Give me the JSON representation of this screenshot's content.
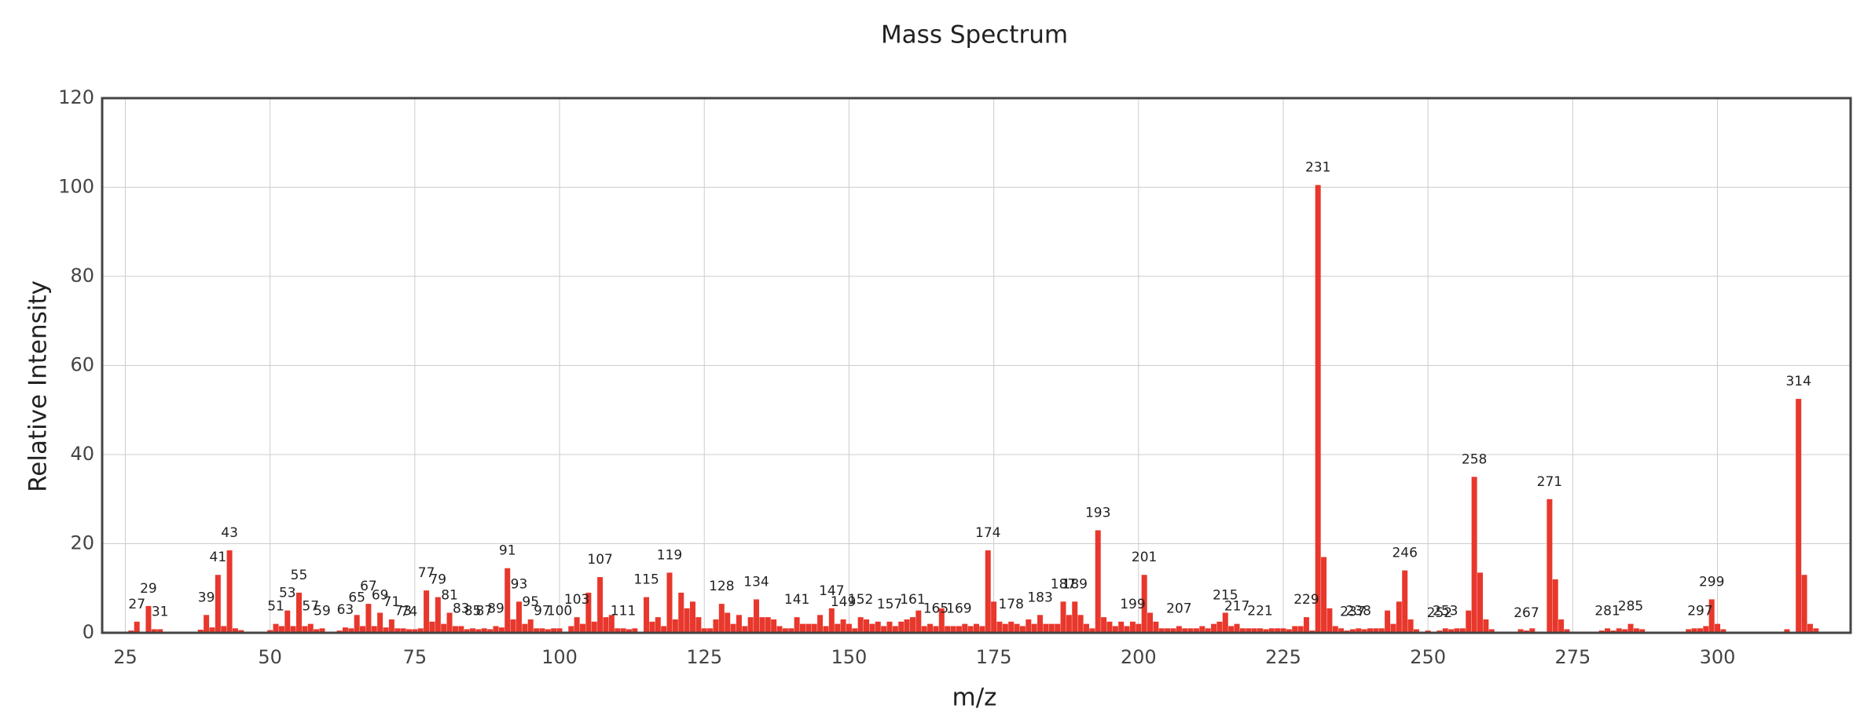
{
  "chart_data": {
    "type": "bar",
    "title": "Mass Spectrum",
    "x_label": "m/z",
    "y_label": "Relative Intensity",
    "color": "#e8372c",
    "grid": true,
    "xlim": [
      21,
      323
    ],
    "ylim": [
      0,
      120
    ],
    "xticks": [
      25,
      50,
      75,
      100,
      125,
      150,
      175,
      200,
      225,
      250,
      275,
      300
    ],
    "yticks": [
      0,
      20,
      40,
      60,
      80,
      100,
      120
    ],
    "x": [
      26,
      27,
      29,
      30,
      31,
      38,
      39,
      40,
      41,
      42,
      43,
      44,
      45,
      50,
      51,
      52,
      53,
      54,
      55,
      56,
      57,
      58,
      59,
      62,
      63,
      64,
      65,
      66,
      67,
      68,
      69,
      70,
      71,
      72,
      73,
      74,
      75,
      76,
      77,
      78,
      79,
      80,
      81,
      82,
      83,
      84,
      85,
      86,
      87,
      88,
      89,
      90,
      91,
      92,
      93,
      94,
      95,
      96,
      97,
      98,
      99,
      100,
      102,
      103,
      104,
      105,
      106,
      107,
      108,
      109,
      110,
      111,
      112,
      113,
      115,
      116,
      117,
      118,
      119,
      120,
      121,
      122,
      123,
      124,
      125,
      126,
      127,
      128,
      129,
      130,
      131,
      132,
      133,
      134,
      135,
      136,
      137,
      138,
      139,
      140,
      141,
      142,
      143,
      144,
      145,
      146,
      147,
      148,
      149,
      150,
      151,
      152,
      153,
      154,
      155,
      156,
      157,
      158,
      159,
      160,
      161,
      162,
      163,
      164,
      165,
      166,
      167,
      168,
      169,
      170,
      171,
      172,
      173,
      174,
      175,
      176,
      177,
      178,
      179,
      180,
      181,
      182,
      183,
      184,
      185,
      186,
      187,
      188,
      189,
      190,
      191,
      192,
      193,
      194,
      195,
      196,
      197,
      198,
      199,
      200,
      201,
      202,
      203,
      204,
      205,
      206,
      207,
      208,
      209,
      210,
      211,
      212,
      213,
      214,
      215,
      216,
      217,
      218,
      219,
      220,
      221,
      222,
      223,
      224,
      225,
      226,
      227,
      228,
      229,
      230,
      231,
      232,
      233,
      234,
      235,
      236,
      237,
      238,
      239,
      240,
      241,
      242,
      243,
      244,
      245,
      246,
      247,
      248,
      250,
      252,
      253,
      254,
      255,
      256,
      257,
      258,
      259,
      260,
      261,
      266,
      267,
      268,
      271,
      272,
      273,
      274,
      280,
      281,
      282,
      283,
      284,
      285,
      286,
      287,
      295,
      296,
      297,
      298,
      299,
      300,
      301,
      312,
      314,
      315,
      316,
      317
    ],
    "values": [
      0.5,
      2.5,
      6,
      0.8,
      0.8,
      0.7,
      4,
      1.2,
      13,
      1.5,
      18.5,
      1,
      0.6,
      0.6,
      2,
      1.5,
      5,
      1.5,
      9,
      1.5,
      2,
      0.8,
      1,
      0.5,
      1.2,
      1,
      4,
      1.5,
      6.5,
      1.5,
      4.5,
      1.2,
      3,
      1,
      1,
      0.8,
      0.8,
      1,
      9.5,
      2.5,
      8,
      2,
      4.5,
      1.5,
      1.5,
      0.8,
      1,
      0.8,
      1,
      0.8,
      1.5,
      1.2,
      14.5,
      3,
      7,
      2,
      3,
      1,
      1,
      0.8,
      1,
      1,
      1.5,
      3.5,
      2,
      9,
      2.5,
      12.5,
      3.5,
      4,
      1,
      1,
      0.8,
      1,
      8,
      2.5,
      3.5,
      1.5,
      13.5,
      3,
      9,
      5.5,
      7,
      3.5,
      1,
      1,
      3,
      6.5,
      4.5,
      2,
      4,
      1.5,
      3.5,
      7.5,
      3.5,
      3.5,
      3,
      1.5,
      1,
      1,
      3.5,
      2,
      2,
      2,
      4,
      1.5,
      5.5,
      2,
      3,
      2,
      1,
      3.5,
      3,
      2,
      2.5,
      1.5,
      2.5,
      1.5,
      2.5,
      3,
      3.5,
      5,
      1.5,
      2,
      1.5,
      5.5,
      1.5,
      1.5,
      1.5,
      2,
      1.5,
      2,
      1.5,
      18.5,
      7,
      2.5,
      2,
      2.5,
      2,
      1.5,
      3,
      2,
      4,
      2,
      2,
      2,
      7,
      4,
      7,
      4,
      2,
      1,
      23,
      3.5,
      2.5,
      1.5,
      2.5,
      1.5,
      2.5,
      2,
      13,
      4.5,
      2.5,
      1,
      1,
      1,
      1.5,
      1,
      1,
      1,
      1.5,
      1,
      2,
      2.5,
      4.5,
      1.5,
      2,
      1,
      1,
      1,
      1,
      0.8,
      1,
      1,
      1,
      0.8,
      1.5,
      1.5,
      3.5,
      0.5,
      100.5,
      17,
      5.5,
      1.5,
      1,
      0.5,
      0.8,
      1,
      0.8,
      1,
      1,
      1,
      5,
      2,
      7,
      14,
      3,
      0.8,
      0.5,
      0.5,
      1,
      0.8,
      1,
      1,
      5,
      35,
      13.5,
      3,
      0.8,
      0.8,
      0.5,
      1,
      30,
      12,
      3,
      0.8,
      0.5,
      1,
      0.5,
      1,
      0.8,
      2,
      1,
      0.8,
      0.8,
      1,
      1,
      1.5,
      7.5,
      2,
      0.8,
      0.8,
      52.5,
      13,
      2,
      1
    ],
    "annotations": [
      27,
      29,
      31,
      39,
      41,
      43,
      51,
      53,
      55,
      57,
      59,
      63,
      65,
      67,
      69,
      71,
      73,
      74,
      77,
      79,
      81,
      83,
      85,
      87,
      89,
      91,
      93,
      95,
      97,
      100,
      103,
      107,
      111,
      115,
      119,
      128,
      134,
      141,
      147,
      149,
      152,
      157,
      161,
      165,
      169,
      174,
      178,
      183,
      187,
      189,
      193,
      199,
      201,
      207,
      215,
      217,
      221,
      229,
      231,
      237,
      238,
      246,
      252,
      253,
      258,
      267,
      271,
      281,
      285,
      297,
      299,
      314
    ]
  }
}
